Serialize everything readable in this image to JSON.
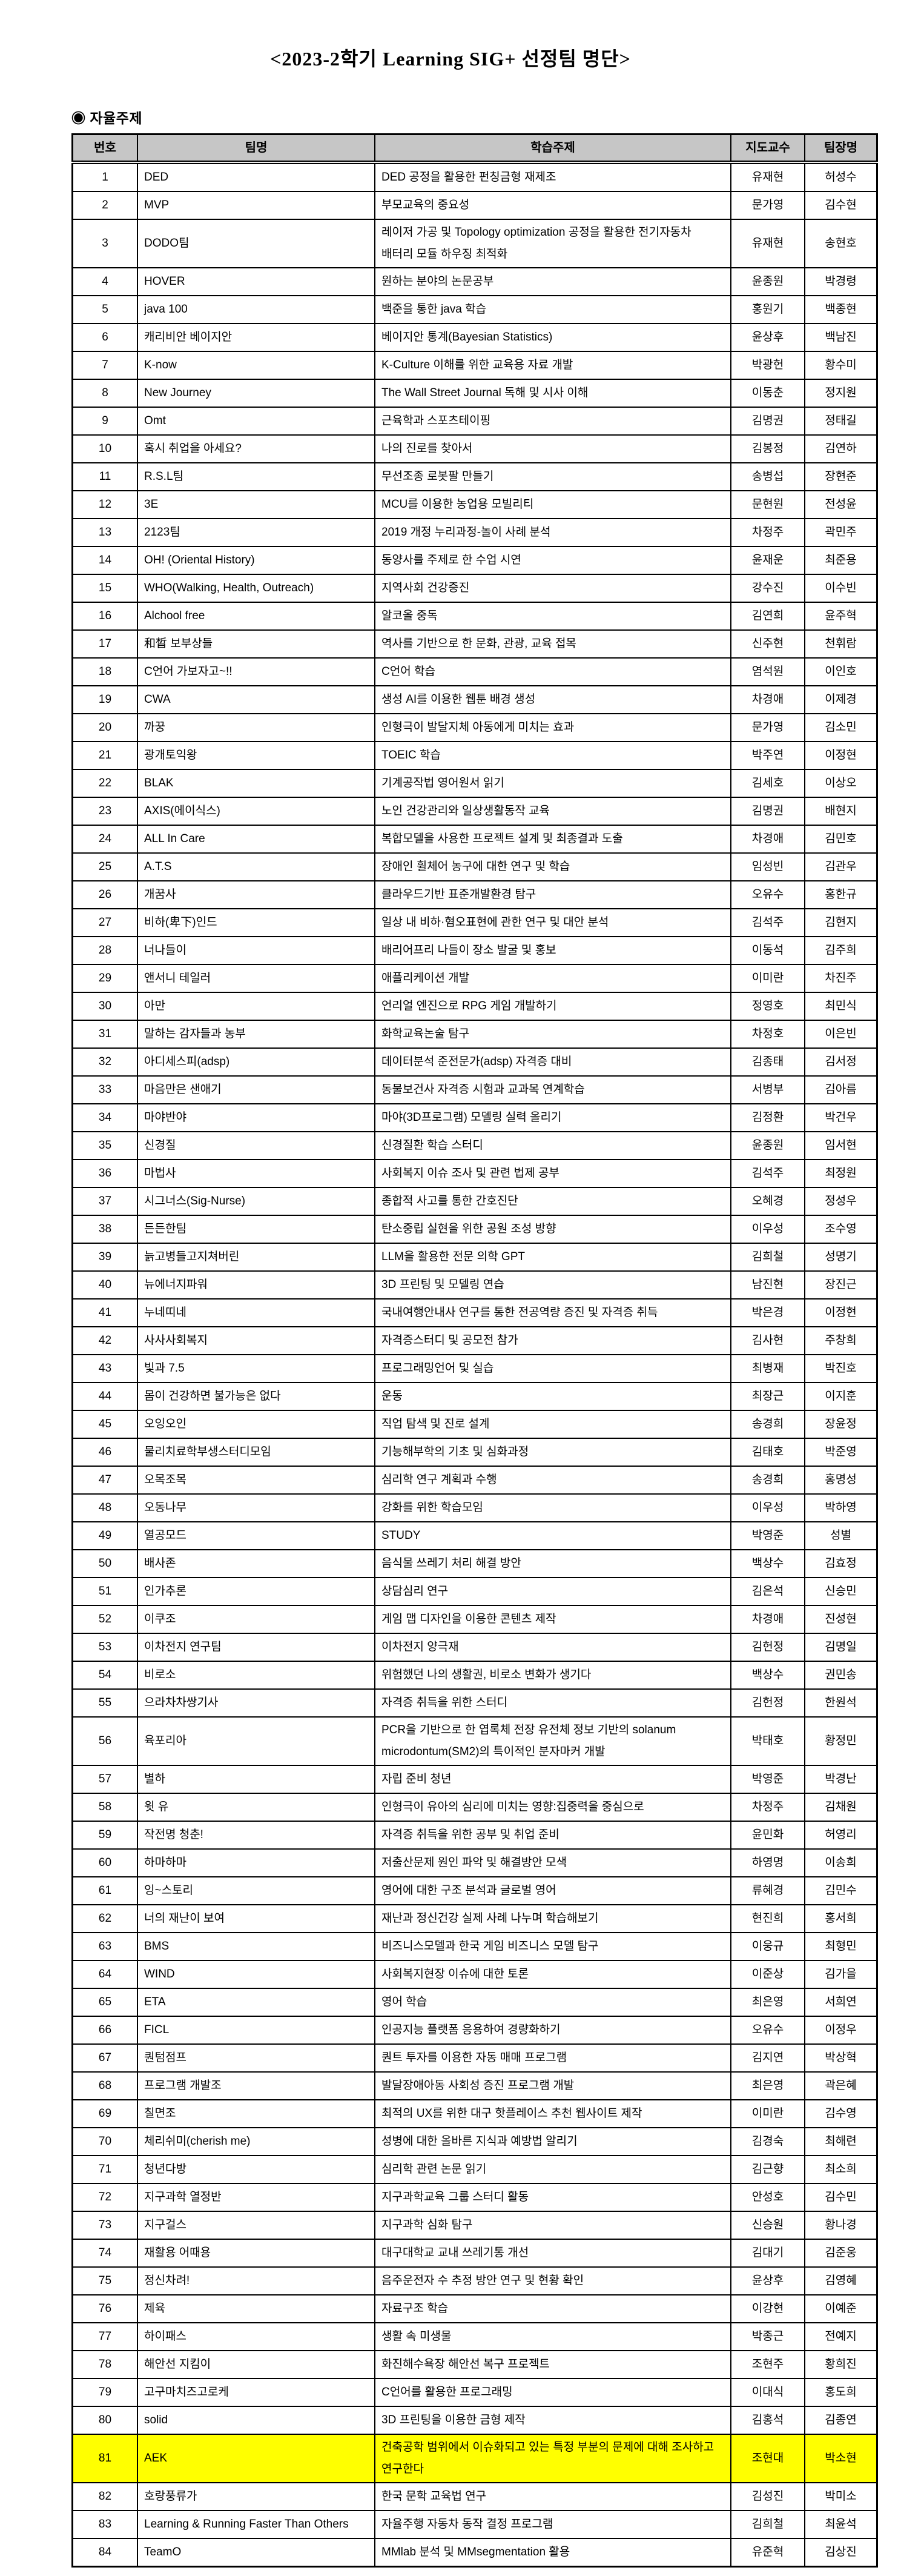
{
  "page": {
    "title": "<2023-2학기 Learning SIG+ 선정팀 명단>",
    "section_label": "◉ 자율주제"
  },
  "table": {
    "header_bg": "#c6c6c6",
    "highlight_color": "#ffff00",
    "columns": [
      "번호",
      "팀명",
      "학습주제",
      "지도교수",
      "팀장명"
    ],
    "rows": [
      {
        "no": "1",
        "team": "DED",
        "topic": "DED 공정을 활용한 펀칭금형 재제조",
        "advisor": "유재현",
        "leader": "허성수"
      },
      {
        "no": "2",
        "team": "MVP",
        "topic": "부모교육의 중요성",
        "advisor": "문가영",
        "leader": "김수현"
      },
      {
        "no": "3",
        "team": "DODO팀",
        "topic": "레이저 가공 및 Topology optimization 공정을 활용한 전기자동차 배터리 모듈 하우징 최적화",
        "advisor": "유재현",
        "leader": "송현호"
      },
      {
        "no": "4",
        "team": "HOVER",
        "topic": "원하는 분야의 논문공부",
        "advisor": "윤종원",
        "leader": "박경령"
      },
      {
        "no": "5",
        "team": "java 100",
        "topic": "백준을 통한 java 학습",
        "advisor": "홍원기",
        "leader": "백종현"
      },
      {
        "no": "6",
        "team": "캐리비안 베이지안",
        "topic": "베이지안 통계(Bayesian Statistics)",
        "advisor": "윤상후",
        "leader": "백남진"
      },
      {
        "no": "7",
        "team": "K-now",
        "topic": "K-Culture 이해를 위한 교육용 자료 개발",
        "advisor": "박광헌",
        "leader": "황수미"
      },
      {
        "no": "8",
        "team": "New Journey",
        "topic": "The Wall Street Journal 독해 및 시사 이해",
        "advisor": "이동춘",
        "leader": "정지원"
      },
      {
        "no": "9",
        "team": "Omt",
        "topic": "근육학과 스포츠테이핑",
        "advisor": "김명권",
        "leader": "정태길"
      },
      {
        "no": "10",
        "team": "혹시 취업을 아세요?",
        "topic": "나의 진로를 찾아서",
        "advisor": "김봉정",
        "leader": "김연하"
      },
      {
        "no": "11",
        "team": "R.S.L팀",
        "topic": "무선조종 로봇팔 만들기",
        "advisor": "송병섭",
        "leader": "장현준"
      },
      {
        "no": "12",
        "team": "3E",
        "topic": "MCU를 이용한 농업용 모빌리티",
        "advisor": "문현원",
        "leader": "전성윤"
      },
      {
        "no": "13",
        "team": "2123팀",
        "topic": "2019 개정 누리과정-놀이 사례 분석",
        "advisor": "차정주",
        "leader": "곽민주"
      },
      {
        "no": "14",
        "team": "OH! (Oriental History)",
        "topic": "동양사를 주제로 한 수업 시연",
        "advisor": "윤재운",
        "leader": "최준용"
      },
      {
        "no": "15",
        "team": "WHO(Walking, Health, Outreach)",
        "topic": "지역사회 건강증진",
        "advisor": "강수진",
        "leader": "이수빈"
      },
      {
        "no": "16",
        "team": "Alchool free",
        "topic": "알코올 중독",
        "advisor": "김연희",
        "leader": "윤주혁"
      },
      {
        "no": "17",
        "team": "和晳 보부상들",
        "topic": "역사를 기반으로 한 문화, 관광, 교육 접목",
        "advisor": "신주현",
        "leader": "천휘람"
      },
      {
        "no": "18",
        "team": "C언어 가보자고~!!",
        "topic": "C언어 학습",
        "advisor": "염석원",
        "leader": "이인호"
      },
      {
        "no": "19",
        "team": "CWA",
        "topic": "생성 AI를 이용한 웹툰 배경 생성",
        "advisor": "차경애",
        "leader": "이제경"
      },
      {
        "no": "20",
        "team": "까꿍",
        "topic": "인형극이 발달지체 아동에게 미치는 효과",
        "advisor": "문가영",
        "leader": "김소민"
      },
      {
        "no": "21",
        "team": "광개토익왕",
        "topic": "TOEIC 학습",
        "advisor": "박주연",
        "leader": "이정현"
      },
      {
        "no": "22",
        "team": "BLAK",
        "topic": "기계공작법 영어원서 읽기",
        "advisor": "김세호",
        "leader": "이상오"
      },
      {
        "no": "23",
        "team": "AXIS(에이식스)",
        "topic": "노인 건강관리와 일상생활동작 교육",
        "advisor": "김명권",
        "leader": "배현지"
      },
      {
        "no": "24",
        "team": "ALL In Care",
        "topic": "복합모델을 사용한 프로젝트 설계 및 최종결과 도출",
        "advisor": "차경애",
        "leader": "김민호"
      },
      {
        "no": "25",
        "team": "A.T.S",
        "topic": "장애인 휠체어 농구에 대한 연구 및 학습",
        "advisor": "임성빈",
        "leader": "김관우"
      },
      {
        "no": "26",
        "team": "개꿈사",
        "topic": "클라우드기반 표준개발환경 탐구",
        "advisor": "오유수",
        "leader": "홍한규"
      },
      {
        "no": "27",
        "team": "비하(卑下)인드",
        "topic": "일상 내 비하·혐오표현에 관한 연구 및 대안 분석",
        "advisor": "김석주",
        "leader": "김현지"
      },
      {
        "no": "28",
        "team": "너나들이",
        "topic": "배리어프리 나들이 장소 발굴 및 홍보",
        "advisor": "이동석",
        "leader": "김주희"
      },
      {
        "no": "29",
        "team": "앤서니 테일러",
        "topic": "애플리케이션 개발",
        "advisor": "이미란",
        "leader": "차진주"
      },
      {
        "no": "30",
        "team": "아만",
        "topic": "언리얼 엔진으로 RPG 게임 개발하기",
        "advisor": "정영호",
        "leader": "최민식"
      },
      {
        "no": "31",
        "team": "말하는 감자들과 농부",
        "topic": "화학교육논술 탐구",
        "advisor": "차정호",
        "leader": "이은빈"
      },
      {
        "no": "32",
        "team": "아디세스피(adsp)",
        "topic": "데이터분석 준전문가(adsp) 자격증 대비",
        "advisor": "김종태",
        "leader": "김서정"
      },
      {
        "no": "33",
        "team": "마음만은 샌애기",
        "topic": "동물보건사 자격증 시험과 교과목 연계학습",
        "advisor": "서병부",
        "leader": "김아름"
      },
      {
        "no": "34",
        "team": "마야반야",
        "topic": "마야(3D프로그램) 모델링 실력 올리기",
        "advisor": "김정환",
        "leader": "박건우"
      },
      {
        "no": "35",
        "team": "신경질",
        "topic": "신경질환 학습 스터디",
        "advisor": "윤종원",
        "leader": "임서현"
      },
      {
        "no": "36",
        "team": "마법사",
        "topic": "사회복지 이슈 조사 및 관련 법제 공부",
        "advisor": "김석주",
        "leader": "최정원"
      },
      {
        "no": "37",
        "team": "시그너스(Sig-Nurse)",
        "topic": "종합적 사고를 통한 간호진단",
        "advisor": "오혜경",
        "leader": "정성우"
      },
      {
        "no": "38",
        "team": "든든한팀",
        "topic": "탄소중립 실현을 위한 공원 조성 방향",
        "advisor": "이우성",
        "leader": "조수영"
      },
      {
        "no": "39",
        "team": "늙고병들고지쳐버린",
        "topic": "LLM을 활용한 전문 의학 GPT",
        "advisor": "김희철",
        "leader": "성명기"
      },
      {
        "no": "40",
        "team": "뉴에너지파워",
        "topic": "3D 프린팅 및 모델링 연습",
        "advisor": "남진현",
        "leader": "장진근"
      },
      {
        "no": "41",
        "team": "누네띠네",
        "topic": "국내여행안내사 연구를 통한 전공역량 증진 및 자격증 취득",
        "advisor": "박은경",
        "leader": "이정현"
      },
      {
        "no": "42",
        "team": "사사사회복지",
        "topic": "자격증스터디 및 공모전 참가",
        "advisor": "김사현",
        "leader": "주창희"
      },
      {
        "no": "43",
        "team": "빛과 7.5",
        "topic": "프로그래밍언어 및 실습",
        "advisor": "최병재",
        "leader": "박진호"
      },
      {
        "no": "44",
        "team": "몸이 건강하면 불가능은 없다",
        "topic": "운동",
        "advisor": "최장근",
        "leader": "이지훈"
      },
      {
        "no": "45",
        "team": "오잉오인",
        "topic": "직업 탐색 및 진로 설계",
        "advisor": "송경희",
        "leader": "장윤정"
      },
      {
        "no": "46",
        "team": "물리치료학부생스터디모임",
        "topic": "기능해부학의 기초 및 심화과정",
        "advisor": "김태호",
        "leader": "박준영"
      },
      {
        "no": "47",
        "team": "오목조목",
        "topic": "심리학 연구 계획과 수행",
        "advisor": "송경희",
        "leader": "홍명성"
      },
      {
        "no": "48",
        "team": "오동나무",
        "topic": "강화를 위한 학습모임",
        "advisor": "이우성",
        "leader": "박하영"
      },
      {
        "no": "49",
        "team": "열공모드",
        "topic": "STUDY",
        "advisor": "박영준",
        "leader": "성별"
      },
      {
        "no": "50",
        "team": "배사존",
        "topic": "음식물 쓰레기 처리 해결 방안",
        "advisor": "백상수",
        "leader": "김효정"
      },
      {
        "no": "51",
        "team": "인가추론",
        "topic": "상담심리 연구",
        "advisor": "김은석",
        "leader": "신승민"
      },
      {
        "no": "52",
        "team": "이쿠조",
        "topic": "게임 맵 디자인을 이용한 콘텐츠 제작",
        "advisor": "차경애",
        "leader": "진성현"
      },
      {
        "no": "53",
        "team": "이차전지 연구팀",
        "topic": "이차전지 양극재",
        "advisor": "김헌정",
        "leader": "김명일"
      },
      {
        "no": "54",
        "team": "비로소",
        "topic": "위험했던 나의 생활권, 비로소 변화가 생기다",
        "advisor": "백상수",
        "leader": "권민송"
      },
      {
        "no": "55",
        "team": "으라차차쌍기사",
        "topic": "자격증 취득을 위한 스터디",
        "advisor": "김헌정",
        "leader": "한원석"
      },
      {
        "no": "56",
        "team": "육포리아",
        "topic": "PCR을 기반으로 한 엽록체 전장 유전체 정보 기반의 solanum microdontum(SM2)의 특이적인 분자마커 개발",
        "advisor": "박태호",
        "leader": "황정민"
      },
      {
        "no": "57",
        "team": "별하",
        "topic": "자립 준비 청년",
        "advisor": "박영준",
        "leader": "박경난"
      },
      {
        "no": "58",
        "team": "윗 유",
        "topic": "인형극이 유아의 심리에 미치는 영향:집중력을 중심으로",
        "advisor": "차정주",
        "leader": "김채원"
      },
      {
        "no": "59",
        "team": "작전명 청춘!",
        "topic": "자격증 취득을 위한 공부 및 취업 준비",
        "advisor": "윤민화",
        "leader": "허영리"
      },
      {
        "no": "60",
        "team": "하마하마",
        "topic": "저출산문제 원인 파악 및 해결방안 모색",
        "advisor": "하영명",
        "leader": "이송희"
      },
      {
        "no": "61",
        "team": "잉~스토리",
        "topic": "영어에 대한 구조 분석과 글로벌 영어",
        "advisor": "류혜경",
        "leader": "김민수"
      },
      {
        "no": "62",
        "team": "너의 재난이 보여",
        "topic": "재난과 정신건강 실제 사례 나누며 학습해보기",
        "advisor": "현진희",
        "leader": "홍서희"
      },
      {
        "no": "63",
        "team": "BMS",
        "topic": "비즈니스모델과 한국 게임 비즈니스 모델 탐구",
        "advisor": "이웅규",
        "leader": "최형민"
      },
      {
        "no": "64",
        "team": "WIND",
        "topic": "사회복지현장 이슈에 대한 토론",
        "advisor": "이준상",
        "leader": "김가을"
      },
      {
        "no": "65",
        "team": "ETA",
        "topic": "영어 학습",
        "advisor": "최은영",
        "leader": "서희연"
      },
      {
        "no": "66",
        "team": "FICL",
        "topic": "인공지능 플랫폼 응용하여 경량화하기",
        "advisor": "오유수",
        "leader": "이정우"
      },
      {
        "no": "67",
        "team": "퀀텀점프",
        "topic": "퀀트 투자를 이용한 자동 매매 프로그램",
        "advisor": "김지연",
        "leader": "박상혁"
      },
      {
        "no": "68",
        "team": "프로그램 개발조",
        "topic": "발달장애아동 사회성 증진 프로그램 개발",
        "advisor": "최은영",
        "leader": "곽은혜"
      },
      {
        "no": "69",
        "team": "칠면조",
        "topic": "최적의 UX를 위한 대구 핫플레이스 추천 웹사이트 제작",
        "advisor": "이미란",
        "leader": "김수영"
      },
      {
        "no": "70",
        "team": "체리쉬미(cherish me)",
        "topic": "성병에 대한 올바른 지식과 예방법 알리기",
        "advisor": "김경숙",
        "leader": "최해련"
      },
      {
        "no": "71",
        "team": "청년다방",
        "topic": "심리학 관련 논문 읽기",
        "advisor": "김근향",
        "leader": "최소희"
      },
      {
        "no": "72",
        "team": "지구과학 열정반",
        "topic": "지구과학교육 그룹 스터디 활동",
        "advisor": "안성호",
        "leader": "김수민"
      },
      {
        "no": "73",
        "team": "지구걸스",
        "topic": "지구과학 심화 탐구",
        "advisor": "신승원",
        "leader": "황나경"
      },
      {
        "no": "74",
        "team": "재활용 어때용",
        "topic": "대구대학교 교내 쓰레기통 개선",
        "advisor": "김대기",
        "leader": "김준웅"
      },
      {
        "no": "75",
        "team": "정신차려!",
        "topic": "음주운전자 수 추정 방안 연구 및 현황 확인",
        "advisor": "윤상후",
        "leader": "김영혜"
      },
      {
        "no": "76",
        "team": "제육",
        "topic": "자료구조 학습",
        "advisor": "이강현",
        "leader": "이예준"
      },
      {
        "no": "77",
        "team": "하이패스",
        "topic": "생활 속 미생물",
        "advisor": "박종근",
        "leader": "전예지"
      },
      {
        "no": "78",
        "team": "해안선 지킴이",
        "topic": "화진해수욕장 해안선 복구 프로젝트",
        "advisor": "조현주",
        "leader": "황희진"
      },
      {
        "no": "79",
        "team": "고구마치즈고로케",
        "topic": "C언어를 활용한 프로그래밍",
        "advisor": "이대식",
        "leader": "홍도희"
      },
      {
        "no": "80",
        "team": "solid",
        "topic": "3D 프린팅을 이용한 금형 제작",
        "advisor": "김홍석",
        "leader": "김종연"
      },
      {
        "no": "81",
        "team": "AEK",
        "topic": "건축공학 범위에서 이슈화되고 있는 특정 부분의 문제에 대해 조사하고 연구한다",
        "advisor": "조현대",
        "leader": "박소현",
        "highlight": true
      },
      {
        "no": "82",
        "team": "호랑풍류가",
        "topic": "한국 문학 교육법 연구",
        "advisor": "김성진",
        "leader": "박미소"
      },
      {
        "no": "83",
        "team": "Learning & Running Faster Than Others",
        "topic": "자율주행 자동차 동작 결정 프로그램",
        "advisor": "김희철",
        "leader": "최윤석"
      },
      {
        "no": "84",
        "team": "TeamO",
        "topic": "MMlab 분석 및 MMsegmentation 활용",
        "advisor": "유준혁",
        "leader": "김상진"
      }
    ]
  }
}
